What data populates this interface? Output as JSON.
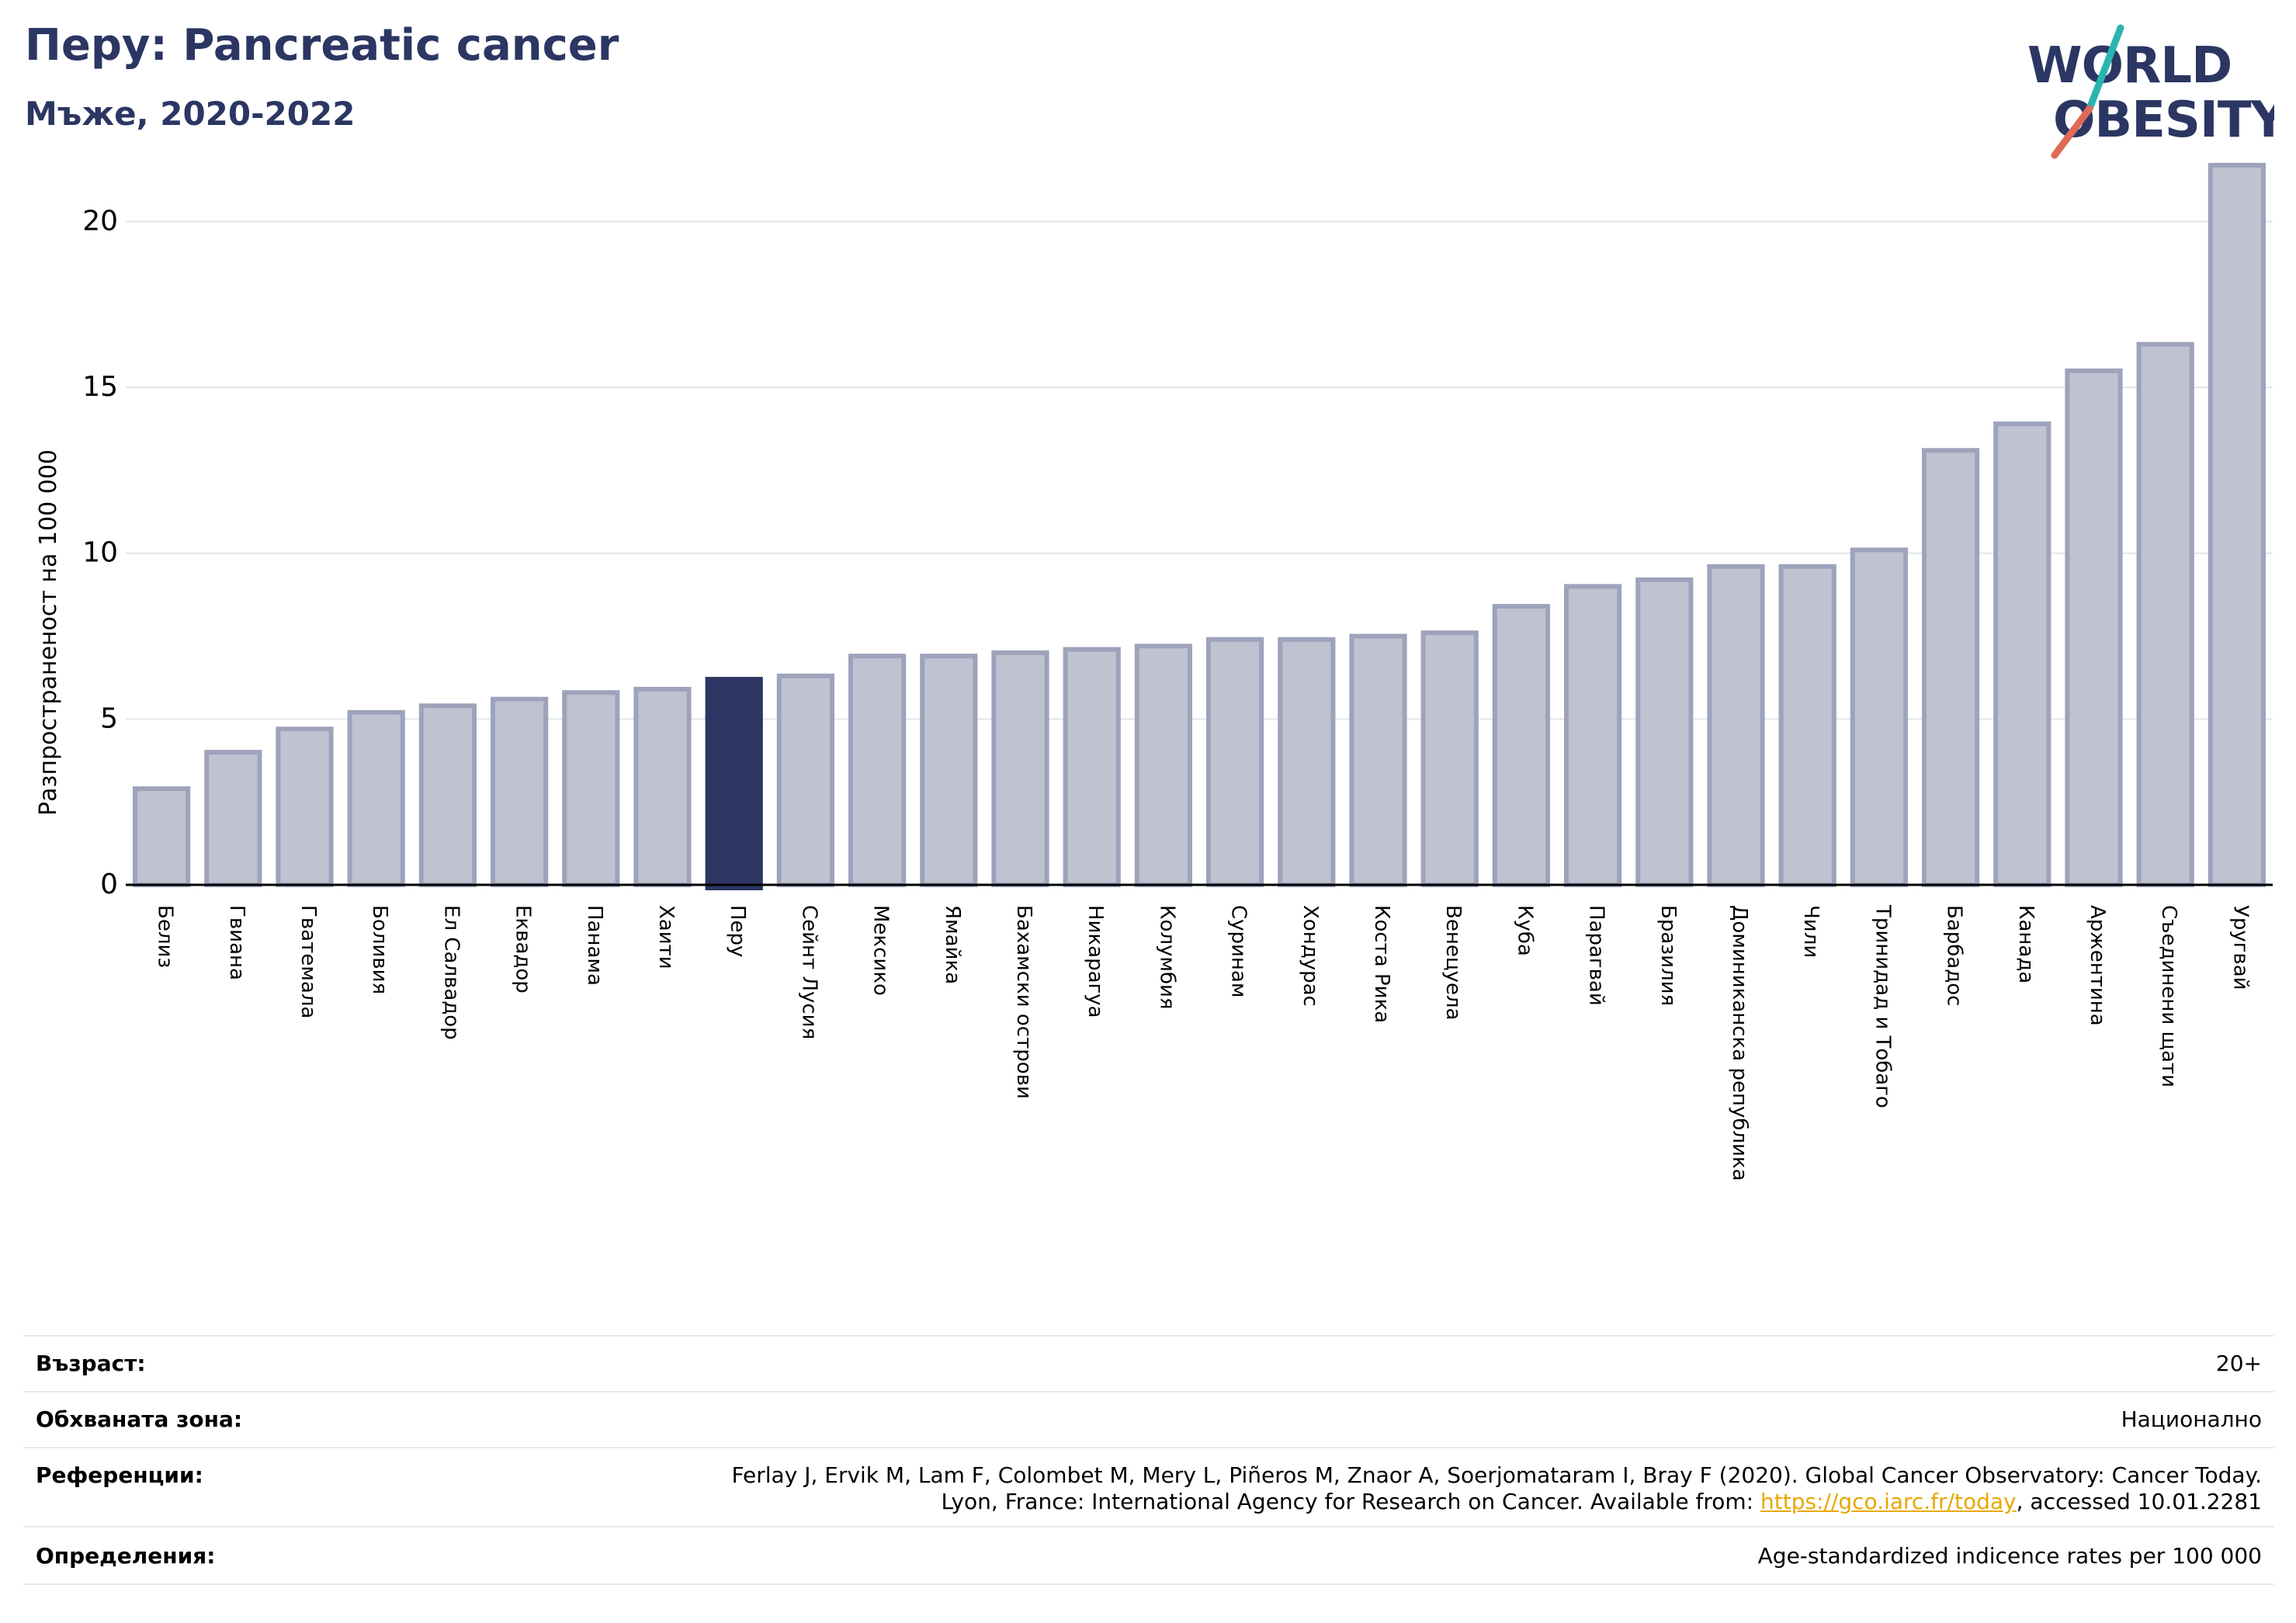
{
  "header": {
    "title": "Перу: Pancreatic cancer",
    "subtitle": "Мъже, 2020-2022"
  },
  "logo": {
    "line1": "WORLD",
    "line2": "OBESITY",
    "colors": {
      "navy": "#2b3663",
      "teal": "#2bb5b0",
      "coral": "#e06a55"
    }
  },
  "chart_data": {
    "type": "bar",
    "title": "Перу: Pancreatic cancer",
    "subtitle": "Мъже, 2020-2022",
    "ylabel": "Разпространеност  на 100 000",
    "xlabel": "",
    "ylim": [
      0,
      22
    ],
    "yticks": [
      0,
      5,
      10,
      15,
      20
    ],
    "grid": true,
    "highlight": "Перу",
    "colors": {
      "bar": "#bfc2d0",
      "bar_edge": "#9ea3bb",
      "highlight": "#2b3663",
      "grid": "#e3e5ec",
      "axis": "#000000"
    },
    "categories": [
      "Белиз",
      "Гвиана",
      "Гватемала",
      "Боливия",
      "Ел Салвадор",
      "Еквадор",
      "Панама",
      "Хаити",
      "Перу",
      "Сейнт Лусия",
      "Мексико",
      "Ямайка",
      "Бахамски острови",
      "Никарагуа",
      "Колумбия",
      "Суринам",
      "Хондурас",
      "Коста Рика",
      "Венецуела",
      "Куба",
      "Парагвай",
      "Бразилия",
      "Доминиканска република",
      "Чили",
      "Тринидад и Тобаго",
      "Барбадос",
      "Канада",
      "Аржентина",
      "Съединени щати",
      "Уругвай"
    ],
    "values": [
      2.9,
      4.0,
      4.7,
      5.2,
      5.4,
      5.6,
      5.8,
      5.9,
      6.2,
      6.3,
      6.9,
      6.9,
      7.0,
      7.1,
      7.2,
      7.4,
      7.4,
      7.5,
      7.6,
      8.4,
      9.0,
      9.2,
      9.6,
      9.6,
      10.1,
      13.1,
      13.9,
      15.5,
      16.3,
      21.7
    ]
  },
  "info": {
    "age_label": "Възраст:",
    "age_value": "20+",
    "coverage_label": "Обхваната зона:",
    "coverage_value": "Национално",
    "references_label": "Референции:",
    "references_line1": "Ferlay J, Ervik M, Lam F, Colombet M, Mery L, Piñeros M, Znaor A, Soerjomataram I, Bray F (2020). Global Cancer Observatory: Cancer Today.",
    "references_line2_pre": "Lyon, France: International Agency for Research on Cancer. Available from: ",
    "references_link": "https://gco.iarc.fr/today",
    "references_line2_post": ", accessed 10.01.2281",
    "definitions_label": "Определения:",
    "definitions_value": "Age-standardized indicence rates per 100 000"
  }
}
